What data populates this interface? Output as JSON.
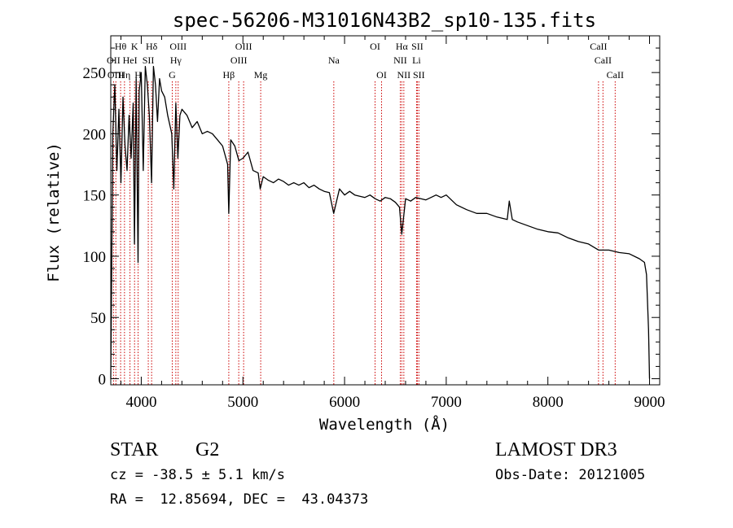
{
  "chart_data": {
    "type": "line",
    "title": "spec-56206-M31016N43B2_sp10-135.fits",
    "xlabel": "Wavelength (Å)",
    "ylabel": "Flux (relative)",
    "xlim": [
      3700,
      9100
    ],
    "ylim": [
      -5,
      280
    ],
    "xticks": [
      4000,
      5000,
      6000,
      7000,
      8000,
      9000
    ],
    "yticks": [
      0,
      50,
      100,
      150,
      200,
      250
    ],
    "xtick_labels": [
      "4000",
      "5000",
      "6000",
      "7000",
      "8000",
      "9000"
    ],
    "ytick_labels": [
      "0",
      "50",
      "100",
      "150",
      "200",
      "250"
    ],
    "series": [
      {
        "name": "spectrum",
        "x": [
          3700,
          3720,
          3740,
          3760,
          3780,
          3800,
          3820,
          3840,
          3860,
          3880,
          3900,
          3920,
          3933,
          3950,
          3968,
          3980,
          4000,
          4020,
          4040,
          4060,
          4080,
          4101,
          4120,
          4140,
          4160,
          4180,
          4200,
          4230,
          4260,
          4300,
          4320,
          4340,
          4360,
          4380,
          4400,
          4450,
          4500,
          4550,
          4600,
          4650,
          4700,
          4750,
          4800,
          4850,
          4861,
          4880,
          4920,
          4960,
          5000,
          5050,
          5100,
          5150,
          5170,
          5200,
          5250,
          5300,
          5350,
          5400,
          5450,
          5500,
          5550,
          5600,
          5650,
          5700,
          5750,
          5800,
          5850,
          5893,
          5950,
          6000,
          6050,
          6100,
          6150,
          6200,
          6250,
          6300,
          6350,
          6400,
          6450,
          6500,
          6540,
          6563,
          6600,
          6650,
          6700,
          6750,
          6800,
          6850,
          6900,
          6950,
          7000,
          7100,
          7200,
          7300,
          7400,
          7500,
          7600,
          7620,
          7650,
          7700,
          7800,
          7900,
          8000,
          8100,
          8200,
          8300,
          8400,
          8500,
          8600,
          8700,
          8800,
          8900,
          8950,
          8970,
          8990,
          9000
        ],
        "y": [
          0,
          200,
          240,
          170,
          220,
          160,
          230,
          190,
          170,
          215,
          180,
          225,
          110,
          245,
          95,
          235,
          250,
          170,
          255,
          240,
          215,
          160,
          255,
          240,
          210,
          245,
          235,
          230,
          215,
          200,
          155,
          225,
          180,
          215,
          220,
          215,
          205,
          210,
          200,
          202,
          200,
          195,
          190,
          175,
          135,
          195,
          190,
          178,
          180,
          185,
          170,
          168,
          155,
          165,
          162,
          160,
          163,
          161,
          158,
          160,
          158,
          160,
          156,
          158,
          155,
          153,
          152,
          135,
          155,
          150,
          153,
          150,
          149,
          148,
          150,
          147,
          145,
          148,
          147,
          144,
          140,
          118,
          147,
          145,
          148,
          147,
          146,
          148,
          150,
          148,
          150,
          142,
          138,
          135,
          135,
          132,
          130,
          145,
          130,
          128,
          125,
          122,
          120,
          119,
          115,
          112,
          110,
          105,
          105,
          103,
          102,
          98,
          95,
          85,
          40,
          0
        ]
      }
    ],
    "line_labels": [
      {
        "label": "Hθ",
        "wavelength": 3797,
        "row": 0
      },
      {
        "label": "OII",
        "wavelength": 3727,
        "row": 1
      },
      {
        "label": "OIII",
        "wavelength": 3750,
        "row": 2
      },
      {
        "label": "K",
        "wavelength": 3934,
        "row": 0
      },
      {
        "label": "HeI",
        "wavelength": 3889,
        "row": 1
      },
      {
        "label": "Hη",
        "wavelength": 3835,
        "row": 2
      },
      {
        "label": "SII",
        "wavelength": 4069,
        "row": 1
      },
      {
        "label": "H",
        "wavelength": 3969,
        "row": 2
      },
      {
        "label": "Hδ",
        "wavelength": 4102,
        "row": 0
      },
      {
        "label": "OIII",
        "wavelength": 4363,
        "row": 0
      },
      {
        "label": "Hγ",
        "wavelength": 4340,
        "row": 1
      },
      {
        "label": "G",
        "wavelength": 4305,
        "row": 2
      },
      {
        "label": "OIII",
        "wavelength": 5007,
        "row": 0
      },
      {
        "label": "OIII",
        "wavelength": 4959,
        "row": 1
      },
      {
        "label": "Hβ",
        "wavelength": 4861,
        "row": 2
      },
      {
        "label": "Mg",
        "wavelength": 5175,
        "row": 2
      },
      {
        "label": "Na",
        "wavelength": 5894,
        "row": 1
      },
      {
        "label": "OI",
        "wavelength": 6300,
        "row": 0
      },
      {
        "label": "OI",
        "wavelength": 6364,
        "row": 2
      },
      {
        "label": "Hα",
        "wavelength": 6563,
        "row": 0
      },
      {
        "label": "SII",
        "wavelength": 6716,
        "row": 0
      },
      {
        "label": "NII",
        "wavelength": 6548,
        "row": 1
      },
      {
        "label": "Li",
        "wavelength": 6708,
        "row": 1
      },
      {
        "label": "NII",
        "wavelength": 6583,
        "row": 2
      },
      {
        "label": "SII",
        "wavelength": 6731,
        "row": 2
      },
      {
        "label": "CaII",
        "wavelength": 8498,
        "row": 0
      },
      {
        "label": "CaII",
        "wavelength": 8542,
        "row": 1
      },
      {
        "label": "CaII",
        "wavelength": 8662,
        "row": 2
      }
    ]
  },
  "info": {
    "object_type": "STAR",
    "subclass": "G2",
    "survey": "LAMOST DR3",
    "cz": "cz = -38.5 ± 5.1 km/s",
    "obs_date": "Obs-Date: 20121005",
    "coords": "RA =  12.85694, DEC =  43.04373"
  },
  "colors": {
    "spectrum": "#000000",
    "line_marker": "#cc0000",
    "axis": "#000000",
    "background": "#ffffff"
  }
}
